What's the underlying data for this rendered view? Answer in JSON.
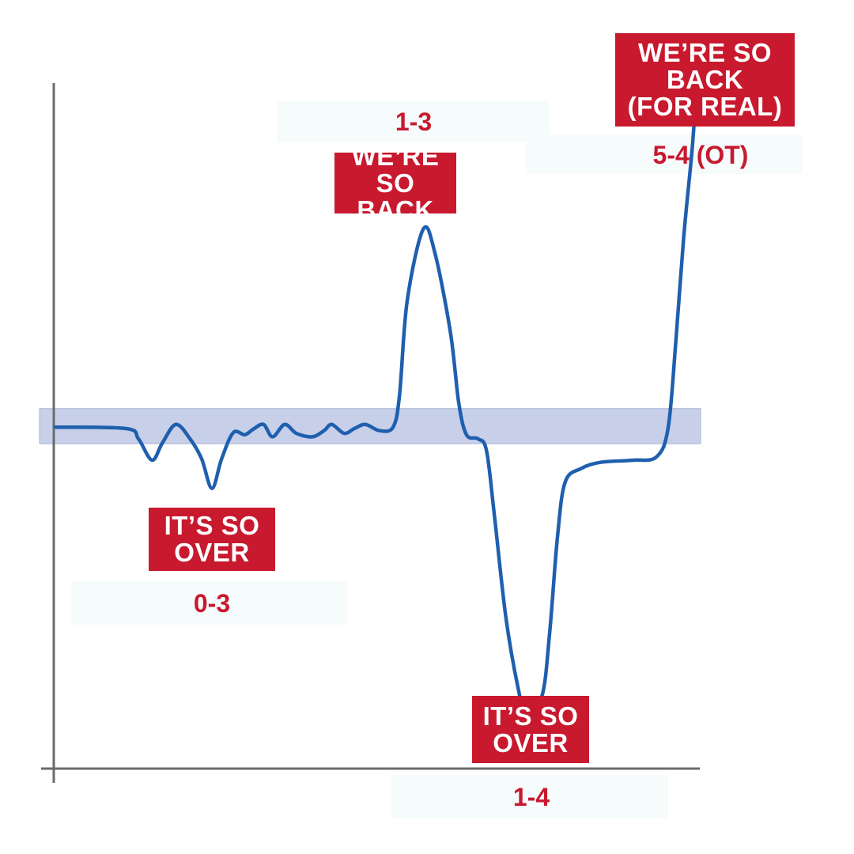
{
  "chart_data": {
    "type": "line",
    "title": "",
    "xlabel": "",
    "ylabel": "",
    "xlim": [
      0,
      100
    ],
    "ylim": [
      0,
      100
    ],
    "grid": false,
    "colors": {
      "line": "#1f5fae",
      "band": "#b9c3e3",
      "axis": "#6b6b6b",
      "label_bg": "#c8192e",
      "score_text": "#c8192e"
    },
    "band": [
      47.0,
      52.1
    ],
    "series": [
      {
        "x": [
          0,
          11.0,
          12.9,
          15.0,
          16.6,
          18.7,
          20.9,
          22.7,
          24.3,
          25.8,
          27.6,
          29.4,
          30.7,
          32.3,
          33.7,
          35.6,
          37.4,
          39.9,
          41.7,
          42.9,
          44.8,
          46.4,
          48.1,
          50.3,
          52.4,
          53.4,
          54.6,
          57.1,
          58.9,
          61.3,
          62.6,
          63.8,
          65.6,
          66.9,
          68.1,
          69.9,
          71.8,
          73.0,
          75.5,
          76.7,
          77.9,
          79.1,
          81.6,
          84.7,
          89.6,
          93.3,
          95.1,
          96.3,
          97.5,
          98.8,
          99.4
        ],
        "y": [
          49.4,
          49.2,
          47.7,
          44.6,
          47.1,
          49.8,
          47.7,
          44.8,
          40.5,
          44.8,
          48.6,
          48.3,
          49.1,
          49.8,
          48.0,
          49.8,
          48.5,
          48.0,
          48.9,
          49.8,
          48.5,
          49.2,
          49.8,
          48.9,
          49.4,
          54.0,
          67.8,
          78.2,
          74.7,
          63.2,
          52.9,
          48.3,
          47.7,
          46.0,
          36.8,
          21.8,
          11.5,
          8.0,
          10.3,
          19.5,
          33.3,
          41.4,
          43.4,
          44.3,
          44.6,
          45.1,
          49.4,
          62.1,
          77.0,
          89.7,
          97.7
        ]
      }
    ],
    "annotations": [
      {
        "label_lines": [
          "IT’S SO",
          "OVER"
        ],
        "score": "0-3"
      },
      {
        "label_lines": [
          "WE’RE SO",
          "BACK"
        ],
        "score": "1-3"
      },
      {
        "label_lines": [
          "IT’S SO",
          "OVER"
        ],
        "score": "1-4"
      },
      {
        "label_lines": [
          "WE’RE SO",
          "BACK",
          "(FOR REAL)"
        ],
        "score": "5-4 (OT)"
      }
    ]
  }
}
